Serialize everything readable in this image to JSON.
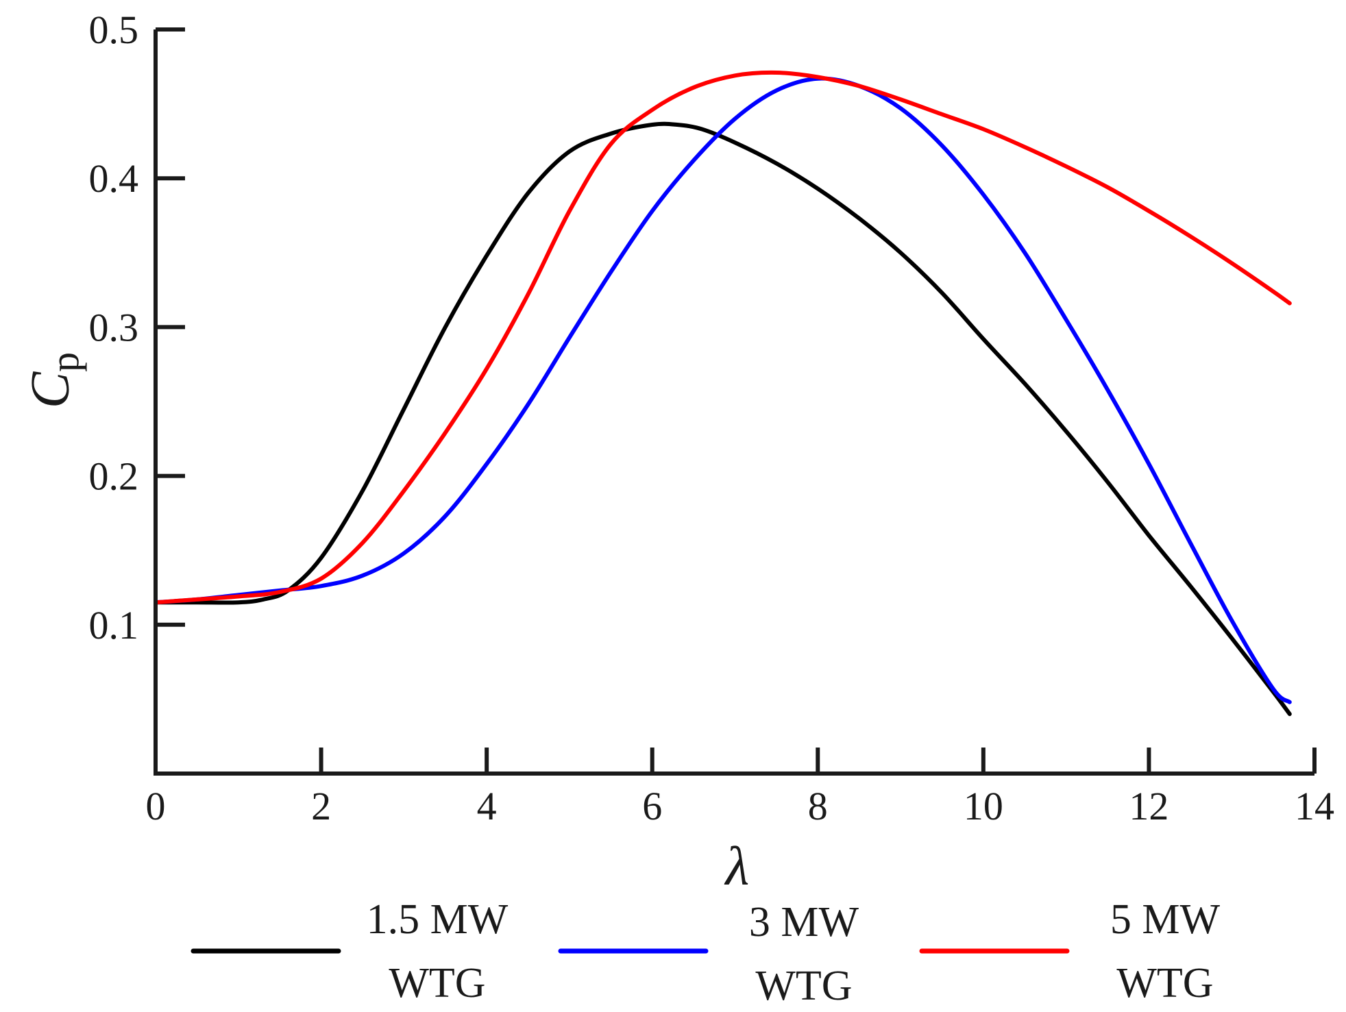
{
  "chart_data": {
    "type": "line",
    "title": "",
    "xlabel": "λ",
    "ylabel_main": "C",
    "ylabel_sub": "p",
    "xlim": [
      0,
      14
    ],
    "ylim": [
      0.0,
      0.5
    ],
    "xticks": [
      0,
      2,
      4,
      6,
      8,
      10,
      12,
      14
    ],
    "xtick_labels": [
      "0",
      "2",
      "4",
      "6",
      "8",
      "10",
      "12",
      "14"
    ],
    "yticks": [
      0.1,
      0.2,
      0.3,
      0.4,
      0.5
    ],
    "ytick_labels": [
      "0.1",
      "0.2",
      "0.3",
      "0.4",
      "0.5"
    ],
    "grid": false,
    "legend_position": "bottom",
    "series": [
      {
        "name_line1": "1.5 MW",
        "name_line2": "WTG",
        "color": "#000000",
        "points": [
          [
            0,
            0.115
          ],
          [
            0.5,
            0.115
          ],
          [
            1.0,
            0.115
          ],
          [
            1.3,
            0.117
          ],
          [
            1.6,
            0.123
          ],
          [
            2.0,
            0.145
          ],
          [
            2.5,
            0.19
          ],
          [
            3.0,
            0.245
          ],
          [
            3.5,
            0.3
          ],
          [
            4.0,
            0.348
          ],
          [
            4.5,
            0.39
          ],
          [
            5.0,
            0.418
          ],
          [
            5.5,
            0.43
          ],
          [
            6.0,
            0.436
          ],
          [
            6.3,
            0.436
          ],
          [
            6.6,
            0.433
          ],
          [
            7.0,
            0.424
          ],
          [
            7.5,
            0.41
          ],
          [
            8.0,
            0.393
          ],
          [
            8.5,
            0.373
          ],
          [
            9.0,
            0.35
          ],
          [
            9.5,
            0.323
          ],
          [
            10.0,
            0.292
          ],
          [
            10.5,
            0.262
          ],
          [
            11.0,
            0.23
          ],
          [
            11.5,
            0.196
          ],
          [
            12.0,
            0.16
          ],
          [
            12.5,
            0.126
          ],
          [
            13.0,
            0.091
          ],
          [
            13.5,
            0.055
          ],
          [
            13.7,
            0.04
          ]
        ]
      },
      {
        "name_line1": "3 MW",
        "name_line2": "WTG",
        "color": "#0000ff",
        "points": [
          [
            0,
            0.115
          ],
          [
            0.5,
            0.117
          ],
          [
            1.0,
            0.12
          ],
          [
            1.5,
            0.123
          ],
          [
            2.0,
            0.126
          ],
          [
            2.5,
            0.133
          ],
          [
            3.0,
            0.148
          ],
          [
            3.5,
            0.173
          ],
          [
            4.0,
            0.208
          ],
          [
            4.5,
            0.248
          ],
          [
            5.0,
            0.293
          ],
          [
            5.5,
            0.337
          ],
          [
            6.0,
            0.378
          ],
          [
            6.5,
            0.412
          ],
          [
            7.0,
            0.44
          ],
          [
            7.5,
            0.459
          ],
          [
            8.0,
            0.467
          ],
          [
            8.5,
            0.462
          ],
          [
            9.0,
            0.447
          ],
          [
            9.5,
            0.422
          ],
          [
            10.0,
            0.389
          ],
          [
            10.5,
            0.35
          ],
          [
            11.0,
            0.305
          ],
          [
            11.5,
            0.258
          ],
          [
            12.0,
            0.208
          ],
          [
            12.5,
            0.155
          ],
          [
            13.0,
            0.103
          ],
          [
            13.5,
            0.057
          ],
          [
            13.7,
            0.048
          ]
        ]
      },
      {
        "name_line1": "5 MW",
        "name_line2": "WTG",
        "color": "#ff0000",
        "points": [
          [
            0,
            0.115
          ],
          [
            0.5,
            0.117
          ],
          [
            1.0,
            0.119
          ],
          [
            1.5,
            0.122
          ],
          [
            2.0,
            0.131
          ],
          [
            2.5,
            0.155
          ],
          [
            3.0,
            0.19
          ],
          [
            3.5,
            0.229
          ],
          [
            4.0,
            0.272
          ],
          [
            4.5,
            0.322
          ],
          [
            5.0,
            0.378
          ],
          [
            5.5,
            0.423
          ],
          [
            6.0,
            0.446
          ],
          [
            6.5,
            0.461
          ],
          [
            7.0,
            0.469
          ],
          [
            7.5,
            0.471
          ],
          [
            8.0,
            0.468
          ],
          [
            8.5,
            0.462
          ],
          [
            9.0,
            0.453
          ],
          [
            9.5,
            0.443
          ],
          [
            10.0,
            0.433
          ],
          [
            10.5,
            0.421
          ],
          [
            11.0,
            0.408
          ],
          [
            11.5,
            0.394
          ],
          [
            12.0,
            0.378
          ],
          [
            12.5,
            0.361
          ],
          [
            13.0,
            0.343
          ],
          [
            13.5,
            0.324
          ],
          [
            13.7,
            0.316
          ]
        ]
      }
    ]
  }
}
